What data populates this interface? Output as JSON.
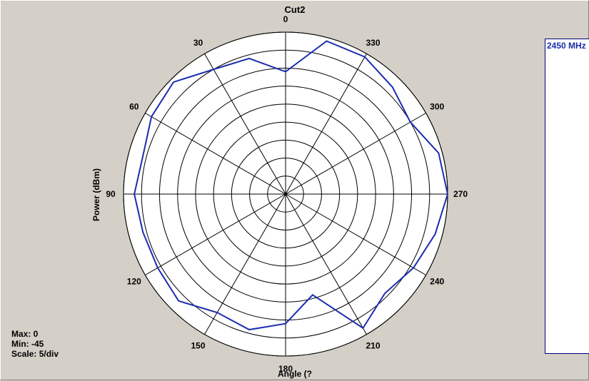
{
  "chart_data": {
    "type": "polar-line",
    "title": "Cut2",
    "radial_axis_label": "Power  (dBm)",
    "angle_axis_label": "Angle  (?",
    "angle_direction": "counterclockwise",
    "angle_zero": "top",
    "angle_ticks": [
      "0",
      "30",
      "60",
      "90",
      "120",
      "150",
      "180",
      "210",
      "240",
      "270",
      "300",
      "330"
    ],
    "radial_range": [
      -45,
      0
    ],
    "radial_step": 5,
    "series": [
      {
        "name": "2450 MHz",
        "color": "#1a2db0",
        "angles": [
          0,
          15,
          30,
          45,
          60,
          75,
          90,
          105,
          120,
          135,
          150,
          165,
          180,
          195,
          210,
          225,
          240,
          255,
          270,
          285,
          300,
          315,
          330,
          345
        ],
        "values": [
          -11,
          -6,
          -5,
          -1,
          -2,
          -4,
          -3,
          -4,
          -4,
          -3,
          -7,
          -6,
          -9,
          -16,
          -2,
          -6,
          -4,
          -2,
          0,
          -1,
          -5,
          -3,
          -1,
          -1
        ]
      }
    ]
  },
  "stats": {
    "max": "Max: 0",
    "min": "Min: -45",
    "scale": "Scale: 5/div"
  },
  "legend": {
    "label": "2450 MHz"
  }
}
